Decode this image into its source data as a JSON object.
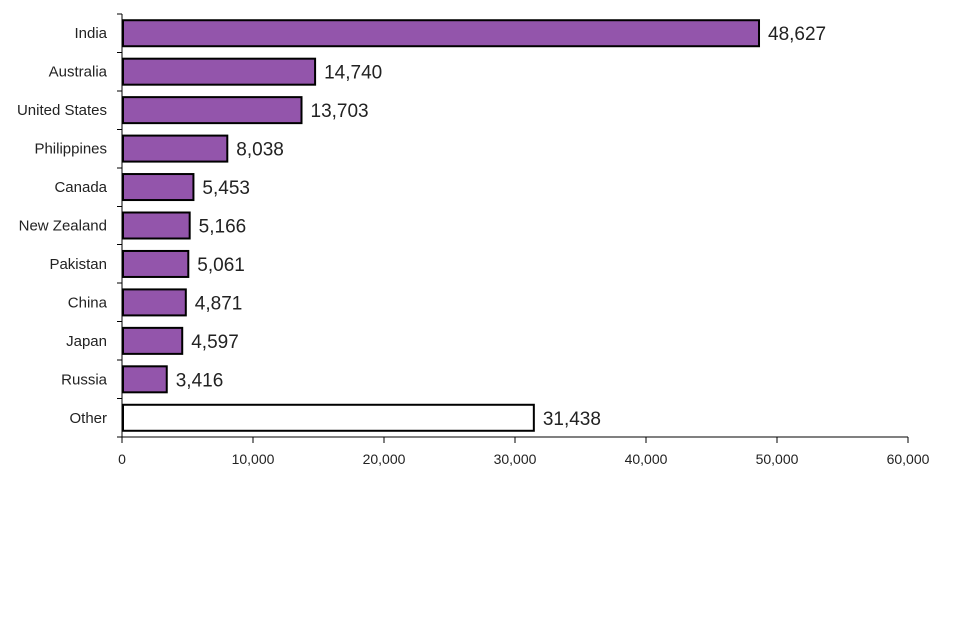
{
  "chart_data": {
    "type": "bar",
    "orientation": "horizontal",
    "title": "",
    "xlabel": "",
    "ylabel": "",
    "categories": [
      "India",
      "Australia",
      "United States",
      "Philippines",
      "Canada",
      "New Zealand",
      "Pakistan",
      "China",
      "Japan",
      "Russia",
      "Other"
    ],
    "values": [
      48627,
      14740,
      13703,
      8038,
      5453,
      5166,
      5061,
      4871,
      4597,
      3416,
      31438
    ],
    "value_labels": [
      "48,627",
      "14,740",
      "13,703",
      "8,038",
      "5,453",
      "5,166",
      "5,061",
      "4,871",
      "4,597",
      "3,416",
      "31,438"
    ],
    "xlim": [
      0,
      60000
    ],
    "x_ticks": [
      0,
      10000,
      20000,
      30000,
      40000,
      50000,
      60000
    ],
    "x_tick_labels": [
      "0",
      "10,000",
      "20,000",
      "30,000",
      "40,000",
      "50,000",
      "60,000"
    ],
    "grid": false,
    "legend": "none",
    "colors": {
      "bar_fill": "#9355AB",
      "other_fill": "#FFFFFF",
      "bar_stroke": "#000000"
    }
  }
}
